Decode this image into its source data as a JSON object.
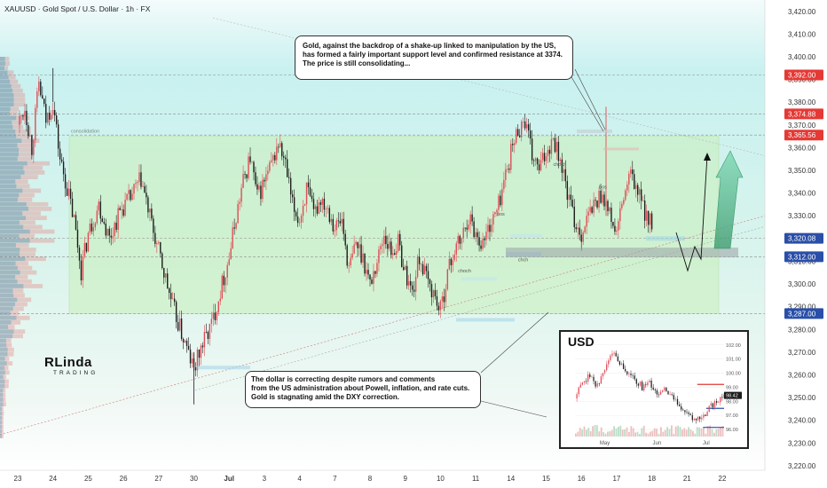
{
  "header": {
    "title": "XAUUSD · Gold Spot / U.S. Dollar · 1h · FX"
  },
  "logo": {
    "name": "RLinda",
    "sub": "TRADING"
  },
  "chart_data": {
    "type": "candlestick",
    "symbol": "XAUUSD",
    "timeframe": "1h",
    "ylim": [
      3218,
      3425
    ],
    "yticks": [
      3220,
      3230,
      3240,
      3250,
      3260,
      3270,
      3280,
      3290,
      3300,
      3310,
      3320,
      3330,
      3340,
      3350,
      3360,
      3370,
      3380,
      3390,
      3400,
      3410,
      3420
    ],
    "xtick_labels": [
      {
        "label": "23",
        "slot": 0
      },
      {
        "label": "24",
        "slot": 1
      },
      {
        "label": "25",
        "slot": 2
      },
      {
        "label": "26",
        "slot": 3
      },
      {
        "label": "27",
        "slot": 4
      },
      {
        "label": "30",
        "slot": 5
      },
      {
        "label": "Jul",
        "slot": 6
      },
      {
        "label": "3",
        "slot": 7
      },
      {
        "label": "4",
        "slot": 8
      },
      {
        "label": "7",
        "slot": 9
      },
      {
        "label": "8",
        "slot": 10
      },
      {
        "label": "9",
        "slot": 11
      },
      {
        "label": "10",
        "slot": 12
      },
      {
        "label": "11",
        "slot": 13
      },
      {
        "label": "14",
        "slot": 14
      },
      {
        "label": "15",
        "slot": 15
      },
      {
        "label": "16",
        "slot": 16
      },
      {
        "label": "17",
        "slot": 17
      },
      {
        "label": "18",
        "slot": 18
      },
      {
        "label": "21",
        "slot": 19
      },
      {
        "label": "22",
        "slot": 20
      }
    ],
    "path": [
      [
        0,
        3370
      ],
      [
        0.2,
        3378
      ],
      [
        0.4,
        3360
      ],
      [
        0.6,
        3388
      ],
      [
        0.8,
        3372
      ],
      [
        1.0,
        3380
      ],
      [
        1.2,
        3355
      ],
      [
        1.4,
        3342
      ],
      [
        1.6,
        3328
      ],
      [
        1.8,
        3306
      ],
      [
        2.0,
        3322
      ],
      [
        2.3,
        3335
      ],
      [
        2.6,
        3320
      ],
      [
        2.9,
        3332
      ],
      [
        3.2,
        3338
      ],
      [
        3.5,
        3346
      ],
      [
        3.8,
        3326
      ],
      [
        4.1,
        3308
      ],
      [
        4.4,
        3290
      ],
      [
        4.7,
        3276
      ],
      [
        5.0,
        3262
      ],
      [
        5.2,
        3272
      ],
      [
        5.5,
        3282
      ],
      [
        5.8,
        3300
      ],
      [
        6.0,
        3312
      ],
      [
        6.2,
        3330
      ],
      [
        6.4,
        3345
      ],
      [
        6.6,
        3356
      ],
      [
        6.8,
        3338
      ],
      [
        7.0,
        3345
      ],
      [
        7.2,
        3352
      ],
      [
        7.4,
        3362
      ],
      [
        7.6,
        3352
      ],
      [
        7.8,
        3334
      ],
      [
        8.0,
        3328
      ],
      [
        8.2,
        3342
      ],
      [
        8.4,
        3330
      ],
      [
        8.6,
        3338
      ],
      [
        8.8,
        3334
      ],
      [
        9.0,
        3325
      ],
      [
        9.2,
        3328
      ],
      [
        9.4,
        3306
      ],
      [
        9.6,
        3318
      ],
      [
        9.8,
        3312
      ],
      [
        10.0,
        3300
      ],
      [
        10.2,
        3310
      ],
      [
        10.4,
        3322
      ],
      [
        10.6,
        3314
      ],
      [
        10.8,
        3318
      ],
      [
        11.0,
        3305
      ],
      [
        11.2,
        3296
      ],
      [
        11.4,
        3312
      ],
      [
        11.6,
        3302
      ],
      [
        11.8,
        3296
      ],
      [
        12.0,
        3288
      ],
      [
        12.2,
        3305
      ],
      [
        12.4,
        3315
      ],
      [
        12.6,
        3320
      ],
      [
        12.8,
        3330
      ],
      [
        13.0,
        3322
      ],
      [
        13.2,
        3318
      ],
      [
        13.4,
        3326
      ],
      [
        13.6,
        3332
      ],
      [
        13.8,
        3345
      ],
      [
        14.0,
        3358
      ],
      [
        14.2,
        3368
      ],
      [
        14.4,
        3372
      ],
      [
        14.6,
        3356
      ],
      [
        14.8,
        3350
      ],
      [
        15.0,
        3358
      ],
      [
        15.2,
        3365
      ],
      [
        15.4,
        3355
      ],
      [
        15.6,
        3340
      ],
      [
        15.8,
        3328
      ],
      [
        16.0,
        3322
      ],
      [
        16.2,
        3330
      ],
      [
        16.4,
        3336
      ],
      [
        16.6,
        3340
      ],
      [
        16.8,
        3330
      ],
      [
        17.0,
        3322
      ],
      [
        17.2,
        3338
      ],
      [
        17.4,
        3348
      ],
      [
        17.6,
        3340
      ],
      [
        17.8,
        3332
      ],
      [
        18.0,
        3326
      ]
    ],
    "levels": [
      {
        "value": 3392.0,
        "label": "3,392.00",
        "color": "#e53935"
      },
      {
        "value": 3374.88,
        "label": "3,374.88",
        "color": "#e53935"
      },
      {
        "value": 3365.56,
        "label": "3,365.56",
        "color": "#e53935"
      },
      {
        "value": 3320.08,
        "label": "3,320.08",
        "color": "#2a4fa8"
      },
      {
        "value": 3312.0,
        "label": "3,312.00",
        "color": "#2a4fa8"
      },
      {
        "value": 3287.0,
        "label": "3,287.00",
        "color": "#2a4fa8"
      }
    ],
    "level_labels": [
      {
        "value": 3374.88,
        "text": "poi"
      },
      {
        "value": 3320.08,
        "text": "eql"
      },
      {
        "value": 3312.0,
        "text": "poi"
      }
    ],
    "zone": {
      "label": "consolidation",
      "from": 3287,
      "to": 3365
    },
    "annotations": [
      {
        "text": "choch",
        "slot": 15.2,
        "value": 3352
      },
      {
        "text": "bos",
        "slot": 16.5,
        "value": 3342
      },
      {
        "text": "bos",
        "slot": 13.6,
        "value": 3330
      },
      {
        "text": "choch",
        "slot": 12.5,
        "value": 3305
      },
      {
        "text": "chch",
        "slot": 14.2,
        "value": 3310
      }
    ],
    "callouts": [
      {
        "lines": [
          "Gold, against the backdrop of a shake-up linked to manipulation by the US,",
          "has formed a fairly important support level and confirmed resistance at 3374.",
          "The price is still consolidating..."
        ]
      },
      {
        "lines": [
          "The dollar is correcting despite rumors and comments",
          "from the US administration about Powell, inflation, and rate cuts.",
          "Gold is stagnating amid the DXY correction."
        ]
      }
    ],
    "inset": {
      "title": "USD",
      "type": "candlestick",
      "ylim": [
        95.5,
        102.3
      ],
      "yticks": [
        {
          "value": 102.0,
          "label": "102.00"
        },
        {
          "value": 101.0,
          "label": "101.00"
        },
        {
          "value": 100.0,
          "label": "100.00"
        },
        {
          "value": 99.0,
          "label": "99.00"
        },
        {
          "value": 98.0,
          "label": "98.00"
        },
        {
          "value": 97.0,
          "label": "97.00"
        },
        {
          "value": 96.0,
          "label": "96.00"
        }
      ],
      "xtick_labels": [
        {
          "label": "May",
          "pos": 0.2
        },
        {
          "label": "Jun",
          "pos": 0.55
        },
        {
          "label": "Jul",
          "pos": 0.88
        }
      ],
      "last_price": {
        "value": 98.42,
        "label": "98.42"
      },
      "resistance": 99.2,
      "support": 97.5,
      "path": [
        [
          0,
          98.2
        ],
        [
          0.05,
          99.4
        ],
        [
          0.1,
          99.8
        ],
        [
          0.15,
          99.1
        ],
        [
          0.2,
          100.2
        ],
        [
          0.25,
          101.6
        ],
        [
          0.3,
          100.8
        ],
        [
          0.35,
          100.0
        ],
        [
          0.4,
          99.6
        ],
        [
          0.45,
          99.0
        ],
        [
          0.5,
          99.3
        ],
        [
          0.55,
          98.5
        ],
        [
          0.6,
          98.9
        ],
        [
          0.65,
          98.2
        ],
        [
          0.7,
          97.8
        ],
        [
          0.75,
          97.0
        ],
        [
          0.8,
          96.6
        ],
        [
          0.85,
          96.8
        ],
        [
          0.9,
          97.5
        ],
        [
          0.95,
          98.0
        ],
        [
          1.0,
          98.42
        ]
      ]
    }
  }
}
